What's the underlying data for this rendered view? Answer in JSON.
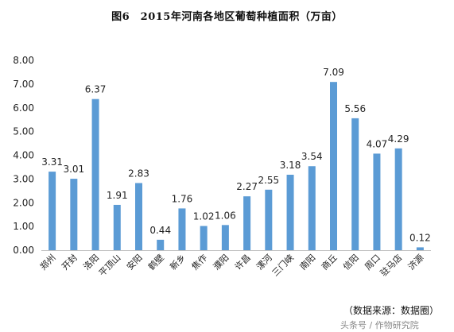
{
  "chart_data": {
    "type": "bar",
    "title": "图6　2015年河南各地区葡萄种植面积（万亩）",
    "categories": [
      "郑州",
      "开封",
      "洛阳",
      "平顶山",
      "安阳",
      "鹤壁",
      "新乡",
      "焦作",
      "濮阳",
      "许昌",
      "漯河",
      "三门峡",
      "南阳",
      "商丘",
      "信阳",
      "周口",
      "驻马店",
      "济源"
    ],
    "values": [
      3.31,
      3.01,
      6.37,
      1.91,
      2.83,
      0.44,
      1.76,
      1.02,
      1.06,
      2.27,
      2.55,
      3.18,
      3.54,
      7.09,
      5.56,
      4.07,
      4.29,
      0.12
    ],
    "value_labels": [
      "3.31",
      "3.01",
      "6.37",
      "1.91",
      "2.83",
      "0.44",
      "1.76",
      "1.02",
      "1.06",
      "2.27",
      "2.55",
      "3.18",
      "3.54",
      "7.09",
      "5.56",
      "4.07",
      "4.29",
      "0.12"
    ],
    "ylim": [
      0,
      8
    ],
    "yticks": [
      "0.00",
      "1.00",
      "2.00",
      "3.00",
      "4.00",
      "5.00",
      "6.00",
      "7.00",
      "8.00"
    ],
    "grid": false,
    "bar_color": "#5b9bd5"
  },
  "source_note": "（数据来源：数据圈）",
  "watermark": "头条号 / 作物研究院"
}
